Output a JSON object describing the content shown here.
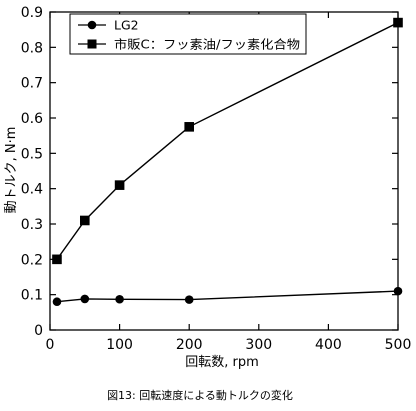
{
  "chart_data": {
    "type": "line",
    "caption": "図13: 回転速度による動トルクの変化",
    "xlabel": "回転数, rpm",
    "ylabel": "動トルク, N·m",
    "xlim": [
      0,
      500
    ],
    "ylim": [
      0,
      0.9
    ],
    "xticks": [
      0,
      100,
      200,
      300,
      400,
      500
    ],
    "yticks": [
      0,
      0.1,
      0.2,
      0.3,
      0.4,
      0.5,
      0.6,
      0.7,
      0.8,
      0.9
    ],
    "grid": false,
    "legend_position": "top-left",
    "series": [
      {
        "name": "LG2",
        "marker": "circle",
        "color": "#000000",
        "x": [
          10,
          50,
          100,
          200,
          500
        ],
        "y": [
          0.08,
          0.088,
          0.087,
          0.086,
          0.11
        ]
      },
      {
        "name": "市販C：フッ素油/フッ素化合物",
        "marker": "square",
        "color": "#000000",
        "x": [
          10,
          50,
          100,
          200,
          500
        ],
        "y": [
          0.2,
          0.31,
          0.41,
          0.575,
          0.87
        ]
      }
    ]
  }
}
